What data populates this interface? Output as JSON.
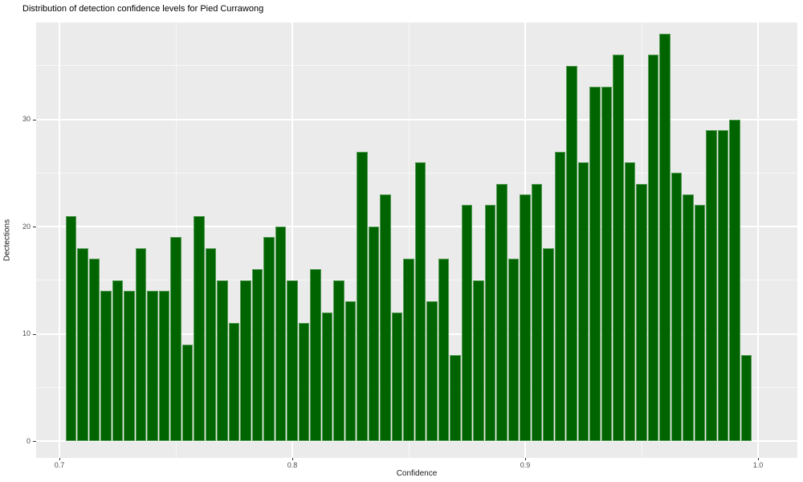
{
  "chart_data": {
    "type": "bar",
    "subtype": "histogram",
    "title": "Distribution of detection confidence levels for Pied Currawong",
    "xlabel": "Confidence",
    "ylabel": "Dectections",
    "x_tick_values": [
      0.7,
      0.8,
      0.9,
      1.0
    ],
    "x_tick_labels": [
      "0.7",
      "0.8",
      "0.9",
      "1.0"
    ],
    "x_minor_ticks": [
      0.75,
      0.85,
      0.95
    ],
    "y_tick_values": [
      0,
      10,
      20,
      30
    ],
    "y_tick_labels": [
      "0",
      "10",
      "20",
      "30"
    ],
    "y_minor_ticks": [
      5,
      15,
      25,
      35
    ],
    "xlim": [
      0.69,
      1.017
    ],
    "ylim": [
      -1.6,
      39.0
    ],
    "grid": true,
    "legend_position": "none",
    "bin_start": 0.7025,
    "bin_width": 0.005,
    "values": [
      21,
      18,
      17,
      14,
      15,
      14,
      18,
      14,
      14,
      19,
      9,
      21,
      18,
      15,
      11,
      15,
      16,
      19,
      20,
      15,
      11,
      16,
      12,
      15,
      13,
      27,
      20,
      23,
      12,
      17,
      26,
      13,
      17,
      8,
      22,
      15,
      22,
      24,
      17,
      23,
      24,
      18,
      27,
      35,
      26,
      33,
      33,
      36,
      26,
      24,
      36,
      38,
      25,
      23,
      22,
      29,
      29,
      30,
      8
    ],
    "colors": {
      "bar_fill": "#006400",
      "bar_edge": "#569b56",
      "panel_background": "#ebebeb",
      "grid_major": "#ffffff",
      "grid_minor": "#ffffff",
      "tick_text": "#4d4d4d",
      "axis_text": "#1a1a1a",
      "tick_mark": "#333333"
    }
  }
}
